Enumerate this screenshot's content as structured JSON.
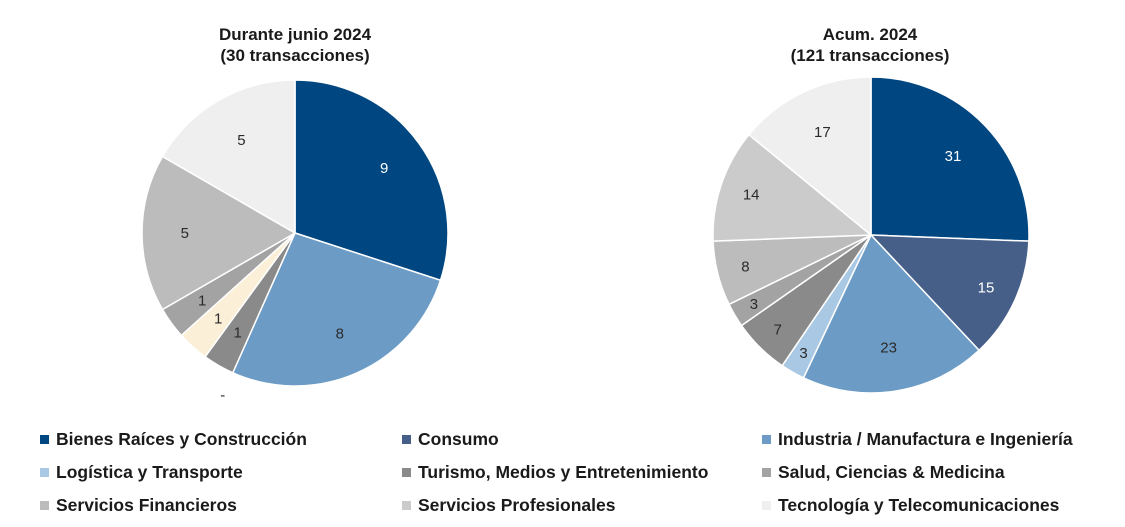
{
  "colors": {
    "bienes": "#004680",
    "consumo": "#465f89",
    "industria": "#6c9cc6",
    "logistica": "#a9c8e3",
    "turismo": "#8a8a8a",
    "salud": "#a3a3a3",
    "financieros": "#bcbcbc",
    "profesionales": "#cbcbcb",
    "tecnologia": "#efefef",
    "cream": "#fbf0d7"
  },
  "legend": [
    {
      "label": "Bienes Raíces y Construcción",
      "color": "#004680"
    },
    {
      "label": "Consumo",
      "color": "#465f89"
    },
    {
      "label": "Industria / Manufactura e Ingeniería",
      "color": "#6c9cc6"
    },
    {
      "label": "Logística y Transporte",
      "color": "#a9c8e3"
    },
    {
      "label": "Turismo, Medios y Entretenimiento",
      "color": "#8a8a8a"
    },
    {
      "label": "Salud, Ciencias & Medicina",
      "color": "#a3a3a3"
    },
    {
      "label": "Servicios Financieros",
      "color": "#bcbcbc"
    },
    {
      "label": "Servicios Profesionales",
      "color": "#cbcbcb"
    },
    {
      "label": "Tecnología y Telecomunicaciones",
      "color": "#efefef"
    }
  ],
  "chart_data": [
    {
      "type": "pie",
      "title": "Durante junio 2024",
      "subtitle": "(30 transacciones)",
      "slices": [
        {
          "category": "Bienes Raíces y Construcción",
          "value": 9,
          "label": "9",
          "color": "#004680"
        },
        {
          "category": "Industria / Manufactura e Ingeniería",
          "value": 8,
          "label": "8",
          "color": "#6c9cc6"
        },
        {
          "category": "Logística y Transporte",
          "value": 0,
          "label": "-",
          "color": "#a9c8e3"
        },
        {
          "category": "Turismo, Medios y Entretenimiento",
          "value": 1,
          "label": "1",
          "color": "#8a8a8a"
        },
        {
          "category": "",
          "value": 1,
          "label": "1",
          "color": "#fbf0d7"
        },
        {
          "category": "Salud, Ciencias & Medicina",
          "value": 1,
          "label": "1",
          "color": "#a3a3a3"
        },
        {
          "category": "Servicios Financieros",
          "value": 5,
          "label": "5",
          "color": "#bcbcbc"
        },
        {
          "category": "Tecnología y Telecomunicaciones",
          "value": 5,
          "label": "5",
          "color": "#efefef"
        }
      ]
    },
    {
      "type": "pie",
      "title": "Acum. 2024",
      "subtitle": "(121 transacciones)",
      "slices": [
        {
          "category": "Bienes Raíces y Construcción",
          "value": 31,
          "label": "31",
          "color": "#004680"
        },
        {
          "category": "Consumo",
          "value": 15,
          "label": "15",
          "color": "#465f89"
        },
        {
          "category": "Industria / Manufactura e Ingeniería",
          "value": 23,
          "label": "23",
          "color": "#6c9cc6"
        },
        {
          "category": "Logística y Transporte",
          "value": 3,
          "label": "3",
          "color": "#a9c8e3"
        },
        {
          "category": "Turismo, Medios y Entretenimiento",
          "value": 7,
          "label": "7",
          "color": "#8a8a8a"
        },
        {
          "category": "Salud, Ciencias & Medicina",
          "value": 3,
          "label": "3",
          "color": "#a3a3a3"
        },
        {
          "category": "Servicios Financieros",
          "value": 8,
          "label": "8",
          "color": "#bcbcbc"
        },
        {
          "category": "Servicios Profesionales",
          "value": 14,
          "label": "14",
          "color": "#cbcbcb"
        },
        {
          "category": "Tecnología y Telecomunicaciones",
          "value": 17,
          "label": "17",
          "color": "#efefef"
        }
      ]
    }
  ]
}
